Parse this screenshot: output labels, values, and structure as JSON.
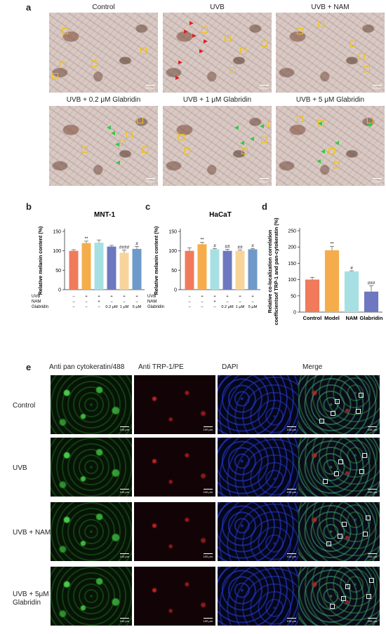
{
  "panel_a": {
    "label": "a",
    "titles": [
      "Control",
      "UVB",
      "UVB + NAM",
      "UVB + 0.2 μM Glabridin",
      "UVB + 1 μM Glabridin",
      "UVB + 5 μM Glabridin"
    ],
    "scalebar": "100 μm"
  },
  "panel_b": {
    "label": "b"
  },
  "panel_c": {
    "label": "c"
  },
  "panel_d": {
    "label": "d"
  },
  "panel_e": {
    "label": "e",
    "columns": [
      "Anti pan cytokeratin/488",
      "Anti TRP-1/PE",
      "DAPI",
      "Merge"
    ],
    "rows": [
      "Control",
      "UVB",
      "UVB + NAM",
      "UVB + 5μM\nGlabridin"
    ],
    "scalebar": "100 μm"
  },
  "chart_data": [
    {
      "type": "bar",
      "title": "MNT-1",
      "ylabel": "Relative melanin content (%)",
      "ylim": [
        0,
        150
      ],
      "yticks": [
        0,
        50,
        100,
        150
      ],
      "categories": [
        "Control",
        "UVB",
        "UVB+NAM",
        "UVB+0.2 μM",
        "UVB+1 μM",
        "UVB+5 μM"
      ],
      "values": [
        100,
        120,
        121,
        111,
        95,
        105
      ],
      "errors": [
        3,
        5,
        7,
        3,
        7,
        6
      ],
      "colors": [
        "#f07a5a",
        "#f5ad4c",
        "#a7e0e3",
        "#6e78c0",
        "#f8d49a",
        "#6f99c9"
      ],
      "significance": [
        "",
        "**",
        "",
        "",
        "####",
        "#"
      ],
      "treatment_rows": [
        {
          "name": "UVB",
          "cells": [
            "–",
            "+",
            "+",
            "+",
            "+",
            "+"
          ]
        },
        {
          "name": "NAM",
          "cells": [
            "–",
            "–",
            "+",
            "–",
            "–",
            "–"
          ]
        },
        {
          "name": "Glabridin",
          "cells": [
            "–",
            "–",
            "–",
            "0.2 μM",
            "1 μM",
            "5 μM"
          ]
        }
      ]
    },
    {
      "type": "bar",
      "title": "HaCaT",
      "ylabel": "Relative melanin content (%)",
      "ylim": [
        0,
        150
      ],
      "yticks": [
        0,
        50,
        100,
        150
      ],
      "categories": [
        "Control",
        "UVB",
        "UVB+NAM",
        "UVB+0.2 μM",
        "UVB+1 μM",
        "UVB+5 μM"
      ],
      "values": [
        100,
        117,
        104,
        100,
        100,
        104
      ],
      "errors": [
        8,
        5,
        2,
        4,
        2,
        2
      ],
      "colors": [
        "#f07a5a",
        "#f5ad4c",
        "#a7e0e3",
        "#6e78c0",
        "#f8d49a",
        "#6f99c9"
      ],
      "significance": [
        "",
        "**",
        "#",
        "##",
        "##",
        "#"
      ],
      "treatment_rows": [
        {
          "name": "UVB",
          "cells": [
            "–",
            "+",
            "+",
            "+",
            "+",
            "+"
          ]
        },
        {
          "name": "NAM",
          "cells": [
            "–",
            "–",
            "+",
            "–",
            "–",
            "–"
          ]
        },
        {
          "name": "Glabridin",
          "cells": [
            "–",
            "–",
            "–",
            "0.2 μM",
            "1 μM",
            "5 μM"
          ]
        }
      ]
    },
    {
      "type": "bar",
      "title": "",
      "ylabel": "Relative co-localization correlation coefficientsof TRP-1 and pan-cytokeratin (%)",
      "ylim": [
        0,
        250
      ],
      "yticks": [
        0,
        50,
        100,
        150,
        200,
        250
      ],
      "categories": [
        "Control",
        "Model",
        "NAM",
        "Glabridin"
      ],
      "values": [
        100,
        190,
        125,
        63
      ],
      "errors": [
        7,
        12,
        2,
        18
      ],
      "colors": [
        "#f07a5a",
        "#f5ad4c",
        "#a7e0e3",
        "#6e78c0"
      ],
      "significance": [
        "",
        "**",
        "#",
        "###"
      ]
    }
  ]
}
